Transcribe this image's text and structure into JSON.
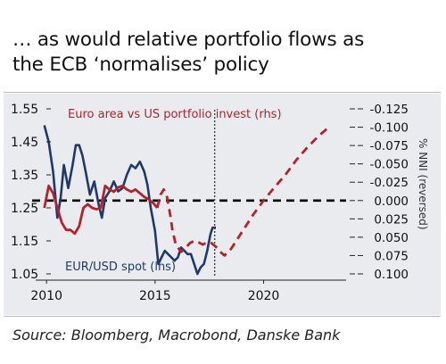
{
  "header": {
    "title_line1": "… as would relative portfolio flows as",
    "title_line2": "the ECB ‘normalises’ policy"
  },
  "footer": {
    "source": "Source: Bloomberg, Macrobond, Danske Bank"
  },
  "colors": {
    "eurusd": "#1f3a68",
    "portfolio": "#b3232c",
    "panel_background": "#e9ebef",
    "reference_line": "#000000",
    "today_marker": "#000000"
  },
  "chart_data": {
    "type": "line",
    "x_axis": {
      "range": [
        2009.5,
        2023.8
      ],
      "ticks": [
        2010,
        2015,
        2020
      ],
      "tick_labels": [
        "2010",
        "2015",
        "2020"
      ]
    },
    "y_left": {
      "range": [
        1.05,
        1.55
      ],
      "ticks": [
        1.05,
        1.15,
        1.25,
        1.35,
        1.45,
        1.55
      ],
      "tick_labels": [
        "1.05",
        "1.15",
        "1.25",
        "1.35",
        "1.45",
        "1.55"
      ]
    },
    "y_right": {
      "label": "% NNI (reversed)",
      "reversed": true,
      "range": [
        -0.125,
        0.1
      ],
      "ticks": [
        -0.125,
        -0.1,
        -0.075,
        -0.05,
        -0.025,
        0.0,
        0.025,
        0.05,
        0.075,
        0.1
      ],
      "tick_labels": [
        "-0.125",
        "-0.100",
        "-0.075",
        "-0.050",
        "-0.025",
        "0.000",
        "0.025",
        "0.050",
        "0.075",
        "0.100"
      ]
    },
    "reference_line": {
      "axis": "y_right",
      "value": 0.0,
      "style": "dashed"
    },
    "vertical_marker": {
      "x": 2017.75,
      "style": "dotted"
    },
    "series": [
      {
        "name": "EUR/USD spot (lhs)",
        "axis": "y_left",
        "style": "solid",
        "points": [
          [
            2009.9,
            1.5
          ],
          [
            2010.1,
            1.45
          ],
          [
            2010.3,
            1.36
          ],
          [
            2010.5,
            1.22
          ],
          [
            2010.65,
            1.28
          ],
          [
            2010.8,
            1.38
          ],
          [
            2011.0,
            1.31
          ],
          [
            2011.2,
            1.38
          ],
          [
            2011.35,
            1.44
          ],
          [
            2011.5,
            1.44
          ],
          [
            2011.65,
            1.41
          ],
          [
            2011.8,
            1.36
          ],
          [
            2012.0,
            1.29
          ],
          [
            2012.2,
            1.33
          ],
          [
            2012.4,
            1.26
          ],
          [
            2012.55,
            1.22
          ],
          [
            2012.7,
            1.28
          ],
          [
            2012.9,
            1.3
          ],
          [
            2013.1,
            1.33
          ],
          [
            2013.3,
            1.3
          ],
          [
            2013.5,
            1.31
          ],
          [
            2013.7,
            1.35
          ],
          [
            2013.9,
            1.38
          ],
          [
            2014.1,
            1.37
          ],
          [
            2014.3,
            1.39
          ],
          [
            2014.5,
            1.36
          ],
          [
            2014.65,
            1.32
          ],
          [
            2014.8,
            1.25
          ],
          [
            2015.0,
            1.18
          ],
          [
            2015.15,
            1.08
          ],
          [
            2015.3,
            1.1
          ],
          [
            2015.45,
            1.12
          ],
          [
            2015.6,
            1.11
          ],
          [
            2015.75,
            1.1
          ],
          [
            2015.9,
            1.09
          ],
          [
            2016.05,
            1.1
          ],
          [
            2016.2,
            1.13
          ],
          [
            2016.35,
            1.12
          ],
          [
            2016.5,
            1.11
          ],
          [
            2016.65,
            1.11
          ],
          [
            2016.8,
            1.08
          ],
          [
            2016.95,
            1.05
          ],
          [
            2017.1,
            1.07
          ],
          [
            2017.25,
            1.08
          ],
          [
            2017.4,
            1.12
          ],
          [
            2017.55,
            1.17
          ],
          [
            2017.65,
            1.19
          ],
          [
            2017.8,
            1.19
          ]
        ]
      },
      {
        "name": "Euro area vs US portfolio invest (rhs)",
        "axis": "y_right",
        "style": "solid",
        "points": [
          [
            2009.9,
            0.01
          ],
          [
            2010.1,
            -0.02
          ],
          [
            2010.3,
            -0.01
          ],
          [
            2010.5,
            0.01
          ],
          [
            2010.7,
            0.03
          ],
          [
            2010.9,
            0.04
          ],
          [
            2011.1,
            0.04
          ],
          [
            2011.3,
            0.045
          ],
          [
            2011.5,
            0.035
          ],
          [
            2011.7,
            0.01
          ],
          [
            2011.9,
            0.005
          ],
          [
            2012.1,
            0.01
          ],
          [
            2012.3,
            0.012
          ],
          [
            2012.5,
            0.01
          ],
          [
            2012.7,
            -0.02
          ],
          [
            2012.9,
            -0.015
          ],
          [
            2013.1,
            -0.012
          ],
          [
            2013.3,
            -0.018
          ],
          [
            2013.5,
            -0.02
          ],
          [
            2013.7,
            -0.015
          ],
          [
            2013.9,
            -0.012
          ],
          [
            2014.1,
            -0.015
          ],
          [
            2014.3,
            -0.01
          ],
          [
            2014.5,
            -0.005
          ],
          [
            2014.7,
            -0.002
          ],
          [
            2014.9,
            0.003
          ],
          [
            2015.1,
            0.01
          ]
        ]
      },
      {
        "name": "Euro area vs US portfolio invest (rhs)",
        "axis": "y_right",
        "style": "dashed",
        "points": [
          [
            2015.1,
            0.01
          ],
          [
            2015.25,
            -0.008
          ],
          [
            2015.4,
            -0.015
          ],
          [
            2015.55,
            -0.005
          ],
          [
            2015.7,
            0.02
          ],
          [
            2015.8,
            0.04
          ],
          [
            2015.95,
            0.06
          ],
          [
            2016.2,
            0.07
          ],
          [
            2016.4,
            0.065
          ],
          [
            2016.6,
            0.058
          ],
          [
            2016.8,
            0.055
          ],
          [
            2017.0,
            0.057
          ],
          [
            2017.2,
            0.06
          ],
          [
            2017.4,
            0.057
          ],
          [
            2017.6,
            0.058
          ],
          [
            2017.8,
            0.063
          ],
          [
            2018.0,
            0.07
          ],
          [
            2018.2,
            0.075
          ],
          [
            2018.5,
            0.066
          ],
          [
            2019.0,
            0.043
          ],
          [
            2019.5,
            0.02
          ],
          [
            2020.0,
            0.0
          ],
          [
            2020.5,
            -0.018
          ],
          [
            2021.0,
            -0.035
          ],
          [
            2021.5,
            -0.055
          ],
          [
            2022.0,
            -0.072
          ],
          [
            2022.5,
            -0.087
          ],
          [
            2023.0,
            -0.1
          ]
        ]
      }
    ],
    "annotations": [
      {
        "text": "Euro area vs US portfolio invest (rhs)",
        "series": "portfolio"
      },
      {
        "text": "EUR/USD spot (lhs)",
        "series": "eurusd"
      }
    ]
  }
}
